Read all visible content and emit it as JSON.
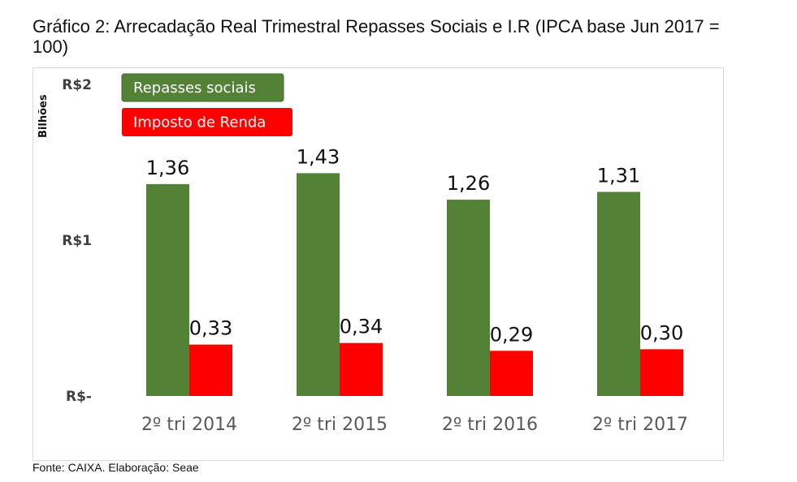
{
  "title": "Gráfico 2: Arrecadação Real Trimestral Repasses Sociais e I.R (IPCA base Jun 2017 = 100)",
  "source": "Fonte: CAIXA. Elaboração: Seae",
  "chart_data": {
    "type": "bar",
    "title": "Gráfico 2: Arrecadação Real Trimestral Repasses Sociais e I.R (IPCA base Jun 2017 = 100)",
    "xlabel": "",
    "ylabel": "Bilhões",
    "ylim": [
      0,
      2
    ],
    "grid": false,
    "legend": "top-left",
    "y_ticks": [
      {
        "value": 0,
        "label": "R$-"
      },
      {
        "value": 1,
        "label": "R$1"
      },
      {
        "value": 2,
        "label": "R$2"
      }
    ],
    "categories": [
      "2º tri 2014",
      "2º tri 2015",
      "2º tri 2016",
      "2º tri 2017"
    ],
    "series": [
      {
        "name": "Repasses sociais",
        "color": "#538135",
        "values": [
          1.36,
          1.43,
          1.26,
          1.31
        ],
        "labels": [
          "1,36",
          "1,43",
          "1,26",
          "1,31"
        ]
      },
      {
        "name": "Imposto de Renda",
        "color": "#ff0000",
        "values": [
          0.33,
          0.34,
          0.29,
          0.3
        ],
        "labels": [
          "0,33",
          "0,34",
          "0,29",
          "0,30"
        ]
      }
    ]
  }
}
